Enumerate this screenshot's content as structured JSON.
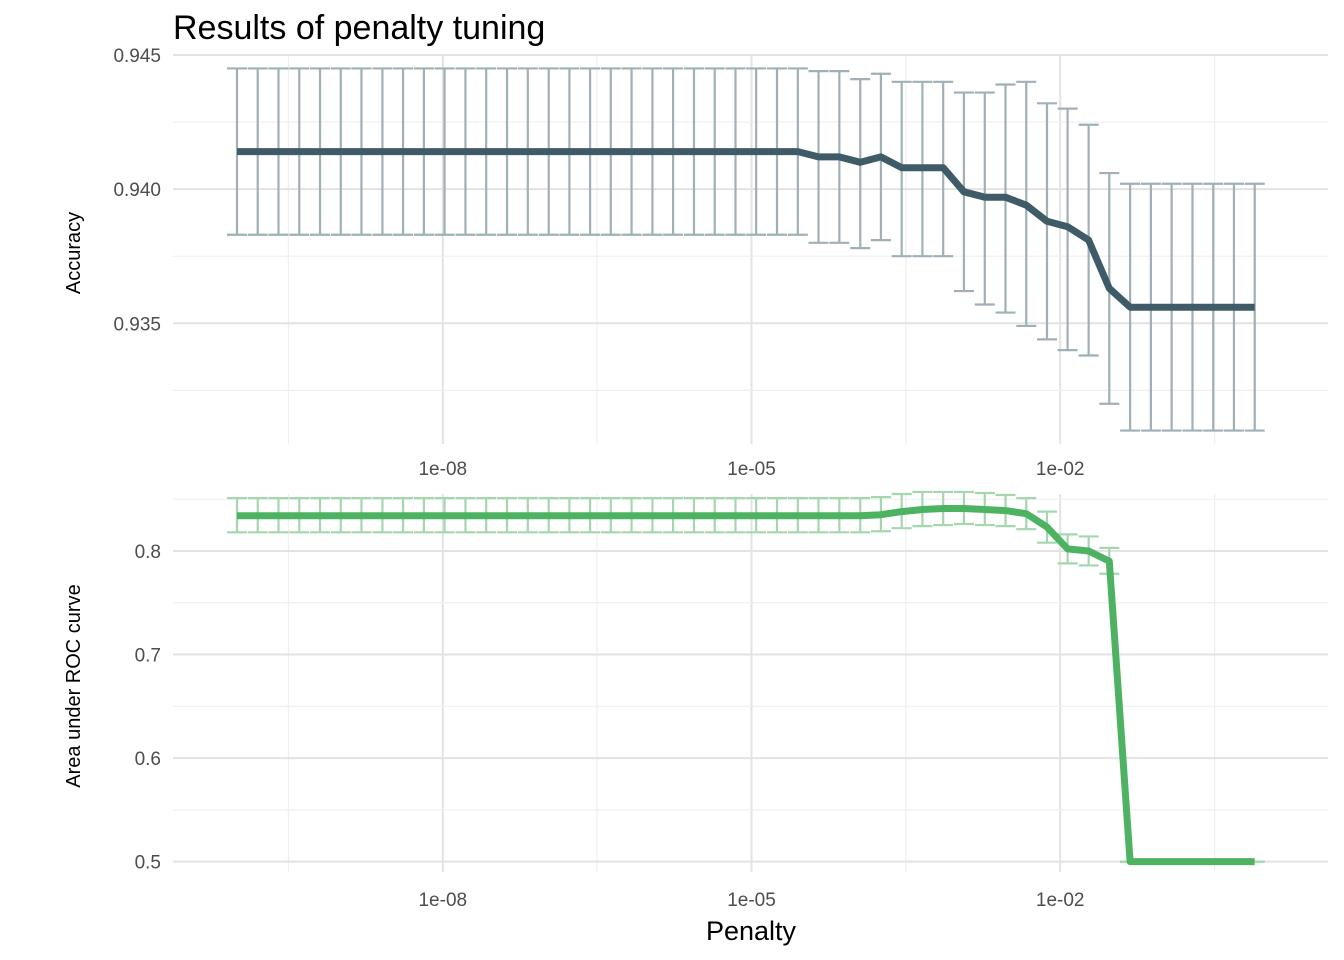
{
  "title": "Results of penalty tuning",
  "xlabel": "Penalty",
  "chart_data": [
    {
      "type": "line",
      "ylabel": "Accuracy",
      "x_scale": "log10",
      "xlim": [
        1e-10,
        1
      ],
      "ylim": [
        0.9305,
        0.945
      ],
      "y_ticks": [
        0.935,
        0.94,
        0.945
      ],
      "y_tick_labels": [
        "0.935",
        "0.940",
        "0.945"
      ],
      "x_ticks": [
        1e-08,
        1e-05,
        0.01
      ],
      "x_tick_labels": [
        "1e-08",
        "1e-05",
        "1e-02"
      ],
      "grid": true,
      "color": "#3f5b67",
      "errorbar_color": "#9fb0b6",
      "series": [
        {
          "x": [
            1e-10,
            1.59e-10,
            2.53e-10,
            4.03e-10,
            6.41e-10,
            1.02e-09,
            1.62e-09,
            2.59e-09,
            4.11e-09,
            6.55e-09,
            1.04e-08,
            1.66e-08,
            2.64e-08,
            4.21e-08,
            6.7e-08,
            1.07e-07,
            1.7e-07,
            2.7e-07,
            4.29e-07,
            6.83e-07,
            1.09e-06,
            1.73e-06,
            2.76e-06,
            4.39e-06,
            6.99e-06,
            1.11e-05,
            1.77e-05,
            2.82e-05,
            4.48e-05,
            7.14e-05,
            0.000114,
            0.000181,
            0.000288,
            0.000458,
            0.000729,
            0.00116,
            0.00185,
            0.00294,
            0.00468,
            0.00744,
            0.0118,
            0.0189,
            0.03,
            0.0478,
            0.0761,
            0.121,
            0.193,
            0.307,
            0.488,
            0.777
          ],
          "y": [
            0.9414,
            0.9414,
            0.9414,
            0.9414,
            0.9414,
            0.9414,
            0.9414,
            0.9414,
            0.9414,
            0.9414,
            0.9414,
            0.9414,
            0.9414,
            0.9414,
            0.9414,
            0.9414,
            0.9414,
            0.9414,
            0.9414,
            0.9414,
            0.9414,
            0.9414,
            0.9414,
            0.9414,
            0.9414,
            0.9414,
            0.9414,
            0.9414,
            0.9412,
            0.9412,
            0.941,
            0.9412,
            0.9408,
            0.9408,
            0.9408,
            0.9399,
            0.9397,
            0.9397,
            0.9394,
            0.9388,
            0.9386,
            0.9381,
            0.9363,
            0.9356,
            0.9356,
            0.9356,
            0.9356,
            0.9356,
            0.9356,
            0.9356
          ],
          "ymin": [
            0.9383,
            0.9383,
            0.9383,
            0.9383,
            0.9383,
            0.9383,
            0.9383,
            0.9383,
            0.9383,
            0.9383,
            0.9383,
            0.9383,
            0.9383,
            0.9383,
            0.9383,
            0.9383,
            0.9383,
            0.9383,
            0.9383,
            0.9383,
            0.9383,
            0.9383,
            0.9383,
            0.9383,
            0.9383,
            0.9383,
            0.9383,
            0.9383,
            0.938,
            0.938,
            0.9378,
            0.9381,
            0.9375,
            0.9375,
            0.9375,
            0.9362,
            0.9357,
            0.9354,
            0.9349,
            0.9344,
            0.934,
            0.9338,
            0.932,
            0.931,
            0.931,
            0.931,
            0.931,
            0.931,
            0.931,
            0.931
          ],
          "ymax": [
            0.9445,
            0.9445,
            0.9445,
            0.9445,
            0.9445,
            0.9445,
            0.9445,
            0.9445,
            0.9445,
            0.9445,
            0.9445,
            0.9445,
            0.9445,
            0.9445,
            0.9445,
            0.9445,
            0.9445,
            0.9445,
            0.9445,
            0.9445,
            0.9445,
            0.9445,
            0.9445,
            0.9445,
            0.9445,
            0.9445,
            0.9445,
            0.9445,
            0.9444,
            0.9444,
            0.9441,
            0.9443,
            0.944,
            0.944,
            0.944,
            0.9436,
            0.9436,
            0.9439,
            0.944,
            0.9432,
            0.943,
            0.9424,
            0.9406,
            0.9402,
            0.9402,
            0.9402,
            0.9402,
            0.9402,
            0.9402,
            0.9402
          ]
        }
      ]
    },
    {
      "type": "line",
      "ylabel": "Area under ROC curve",
      "x_scale": "log10",
      "xlim": [
        1e-10,
        1
      ],
      "ylim": [
        0.49,
        0.855
      ],
      "y_ticks": [
        0.5,
        0.6,
        0.7,
        0.8
      ],
      "y_tick_labels": [
        "0.5",
        "0.6",
        "0.7",
        "0.8"
      ],
      "x_ticks": [
        1e-08,
        1e-05,
        0.01
      ],
      "x_tick_labels": [
        "1e-08",
        "1e-05",
        "1e-02"
      ],
      "grid": true,
      "color": "#4db363",
      "errorbar_color": "#a4d7ad",
      "series": [
        {
          "x": [
            1e-10,
            1.59e-10,
            2.53e-10,
            4.03e-10,
            6.41e-10,
            1.02e-09,
            1.62e-09,
            2.59e-09,
            4.11e-09,
            6.55e-09,
            1.04e-08,
            1.66e-08,
            2.64e-08,
            4.21e-08,
            6.7e-08,
            1.07e-07,
            1.7e-07,
            2.7e-07,
            4.29e-07,
            6.83e-07,
            1.09e-06,
            1.73e-06,
            2.76e-06,
            4.39e-06,
            6.99e-06,
            1.11e-05,
            1.77e-05,
            2.82e-05,
            4.48e-05,
            7.14e-05,
            0.000114,
            0.000181,
            0.000288,
            0.000458,
            0.000729,
            0.00116,
            0.00185,
            0.00294,
            0.00468,
            0.00744,
            0.0118,
            0.0189,
            0.03,
            0.0478,
            0.0761,
            0.121,
            0.193,
            0.307,
            0.488,
            0.777
          ],
          "y": [
            0.834,
            0.834,
            0.834,
            0.834,
            0.834,
            0.834,
            0.834,
            0.834,
            0.834,
            0.834,
            0.834,
            0.834,
            0.834,
            0.834,
            0.834,
            0.834,
            0.834,
            0.834,
            0.834,
            0.834,
            0.834,
            0.834,
            0.834,
            0.834,
            0.834,
            0.834,
            0.834,
            0.834,
            0.834,
            0.834,
            0.834,
            0.835,
            0.838,
            0.84,
            0.841,
            0.841,
            0.84,
            0.839,
            0.836,
            0.823,
            0.802,
            0.8,
            0.79,
            0.5,
            0.5,
            0.5,
            0.5,
            0.5,
            0.5,
            0.5
          ],
          "ymin": [
            0.818,
            0.818,
            0.818,
            0.818,
            0.818,
            0.818,
            0.818,
            0.818,
            0.818,
            0.818,
            0.818,
            0.818,
            0.818,
            0.818,
            0.818,
            0.818,
            0.818,
            0.818,
            0.818,
            0.818,
            0.818,
            0.818,
            0.818,
            0.818,
            0.818,
            0.818,
            0.818,
            0.818,
            0.818,
            0.818,
            0.818,
            0.819,
            0.822,
            0.824,
            0.825,
            0.826,
            0.825,
            0.824,
            0.821,
            0.808,
            0.788,
            0.786,
            0.778,
            0.5,
            0.5,
            0.5,
            0.5,
            0.5,
            0.5,
            0.5
          ],
          "ymax": [
            0.851,
            0.851,
            0.851,
            0.851,
            0.851,
            0.851,
            0.851,
            0.851,
            0.851,
            0.851,
            0.851,
            0.851,
            0.851,
            0.851,
            0.851,
            0.851,
            0.851,
            0.851,
            0.851,
            0.851,
            0.851,
            0.851,
            0.851,
            0.851,
            0.851,
            0.851,
            0.851,
            0.851,
            0.851,
            0.851,
            0.851,
            0.852,
            0.855,
            0.857,
            0.857,
            0.857,
            0.856,
            0.854,
            0.851,
            0.838,
            0.816,
            0.814,
            0.803,
            0.5,
            0.5,
            0.5,
            0.5,
            0.5,
            0.5,
            0.5
          ]
        }
      ]
    }
  ]
}
